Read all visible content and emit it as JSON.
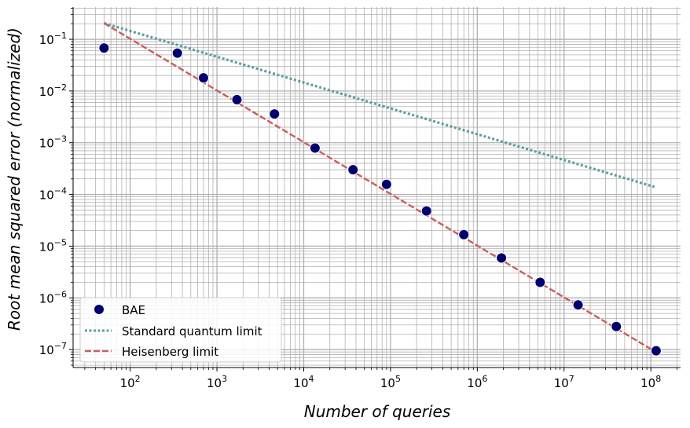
{
  "chart_data": {
    "type": "scatter",
    "title": "",
    "xlabel": "Number of queries",
    "ylabel": "Root mean squared error (normalized)",
    "xscale": "log",
    "yscale": "log",
    "xlim": [
      22,
      220000000
    ],
    "ylim": [
      4.5e-08,
      0.42
    ],
    "grid": true,
    "legend_position": "bottom-left",
    "x_ticks": [
      {
        "value": 100,
        "base": "10",
        "exp": "2"
      },
      {
        "value": 1000,
        "base": "10",
        "exp": "3"
      },
      {
        "value": 10000,
        "base": "10",
        "exp": "4"
      },
      {
        "value": 100000,
        "base": "10",
        "exp": "5"
      },
      {
        "value": 1000000,
        "base": "10",
        "exp": "6"
      },
      {
        "value": 10000000,
        "base": "10",
        "exp": "7"
      },
      {
        "value": 100000000,
        "base": "10",
        "exp": "8"
      }
    ],
    "y_ticks": [
      {
        "value": 0.1,
        "base": "10",
        "exp": "−1"
      },
      {
        "value": 0.01,
        "base": "10",
        "exp": "−2"
      },
      {
        "value": 0.001,
        "base": "10",
        "exp": "−3"
      },
      {
        "value": 0.0001,
        "base": "10",
        "exp": "−4"
      },
      {
        "value": 1e-05,
        "base": "10",
        "exp": "−5"
      },
      {
        "value": 1e-06,
        "base": "10",
        "exp": "−6"
      },
      {
        "value": 1e-07,
        "base": "10",
        "exp": "−7"
      }
    ],
    "series": [
      {
        "name": "BAE",
        "kind": "scatter",
        "color": "#00006e",
        "edge_color": "#ffffff",
        "x": [
          50,
          350,
          700,
          1700,
          4600,
          13500,
          37000,
          90000,
          260000,
          700000,
          1900000,
          5300000,
          14500000,
          40000000,
          115000000
        ],
        "y": [
          0.068,
          0.054,
          0.018,
          0.0068,
          0.0036,
          0.00079,
          0.0003,
          0.000157,
          4.8e-05,
          1.67e-05,
          5.9e-06,
          2e-06,
          7.3e-07,
          2.8e-07,
          9.5e-08
        ]
      },
      {
        "name": "Standard quantum limit",
        "kind": "line",
        "style": "dotted",
        "color": "#5f9ea0",
        "x": [
          50,
          110000000
        ],
        "y": [
          0.205,
          0.00014
        ]
      },
      {
        "name": "Heisenberg limit",
        "kind": "line",
        "style": "dashed",
        "color": "#cd5c5c",
        "x": [
          50,
          110000000
        ],
        "y": [
          0.205,
          9.3e-08
        ]
      }
    ]
  }
}
